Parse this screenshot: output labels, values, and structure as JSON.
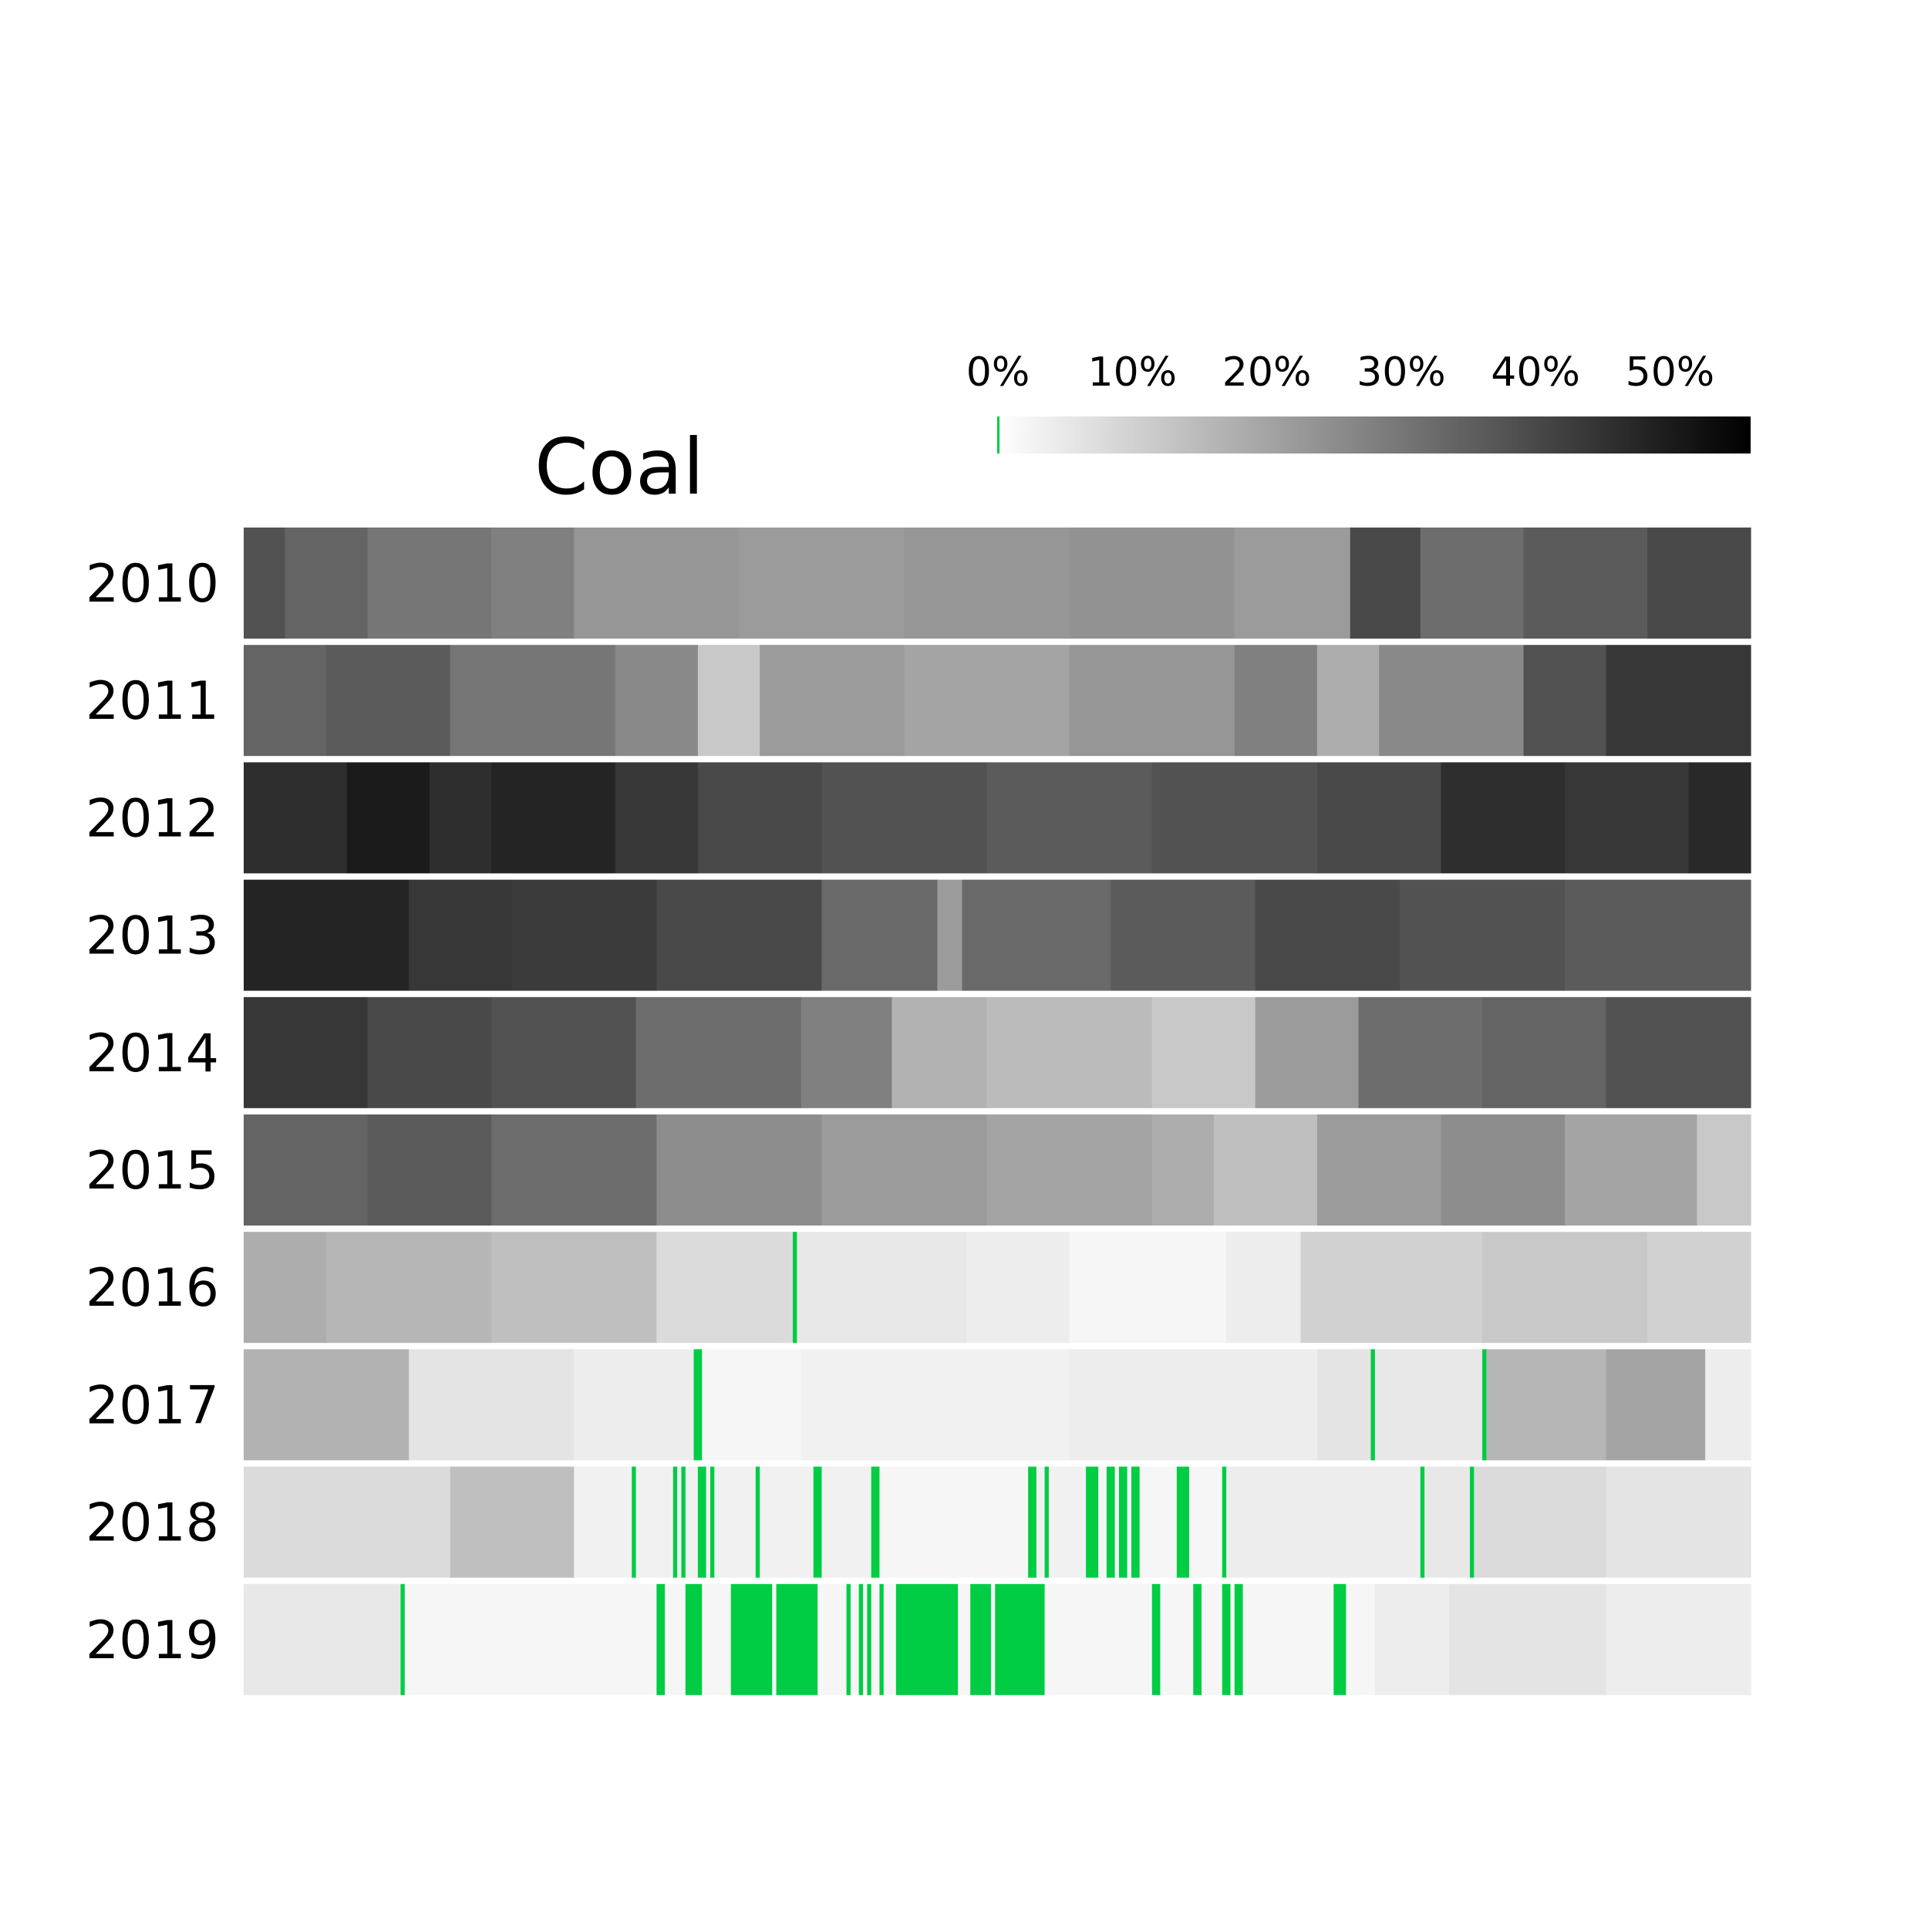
{
  "chart_data": {
    "type": "heatmap",
    "title": "Coal",
    "xlabel": "",
    "ylabel": "",
    "rows": [
      "2010",
      "2011",
      "2012",
      "2013",
      "2014",
      "2015",
      "2016",
      "2017",
      "2018",
      "2019"
    ],
    "days_per_row": 365,
    "value_unit": "%",
    "zero_color": "#00cc44",
    "colormap": [
      "#ffffff",
      "#000000"
    ],
    "colorbar": {
      "min": 0,
      "max": 56,
      "ticks": [
        0,
        10,
        20,
        30,
        40,
        50
      ],
      "tick_labels": [
        "0%",
        "10%",
        "20%",
        "30%",
        "40%",
        "50%"
      ],
      "placement": "top-right"
    },
    "segments": [
      [
        [
          0,
          10,
          38
        ],
        [
          10,
          30,
          34
        ],
        [
          30,
          60,
          30
        ],
        [
          60,
          80,
          28
        ],
        [
          80,
          120,
          23
        ],
        [
          120,
          160,
          22
        ],
        [
          160,
          200,
          23
        ],
        [
          200,
          240,
          24
        ],
        [
          240,
          268,
          22
        ],
        [
          268,
          285,
          40
        ],
        [
          285,
          310,
          32
        ],
        [
          310,
          340,
          36
        ],
        [
          340,
          365,
          40
        ]
      ],
      [
        [
          0,
          20,
          34
        ],
        [
          20,
          50,
          36
        ],
        [
          50,
          90,
          30
        ],
        [
          90,
          110,
          26
        ],
        [
          110,
          125,
          12
        ],
        [
          125,
          160,
          22
        ],
        [
          160,
          200,
          20
        ],
        [
          200,
          240,
          23
        ],
        [
          240,
          260,
          28
        ],
        [
          260,
          275,
          18
        ],
        [
          275,
          310,
          26
        ],
        [
          310,
          330,
          38
        ],
        [
          330,
          365,
          44
        ]
      ],
      [
        [
          0,
          25,
          46
        ],
        [
          25,
          45,
          50
        ],
        [
          45,
          60,
          46
        ],
        [
          60,
          90,
          48
        ],
        [
          90,
          110,
          44
        ],
        [
          110,
          140,
          40
        ],
        [
          140,
          180,
          38
        ],
        [
          180,
          220,
          36
        ],
        [
          220,
          260,
          38
        ],
        [
          260,
          290,
          40
        ],
        [
          290,
          320,
          46
        ],
        [
          320,
          350,
          44
        ],
        [
          350,
          365,
          47
        ]
      ],
      [
        [
          0,
          40,
          48
        ],
        [
          40,
          65,
          44
        ],
        [
          65,
          100,
          43
        ],
        [
          100,
          140,
          40
        ],
        [
          140,
          168,
          33
        ],
        [
          168,
          174,
          22
        ],
        [
          174,
          210,
          33
        ],
        [
          210,
          245,
          36
        ],
        [
          245,
          280,
          40
        ],
        [
          280,
          320,
          38
        ],
        [
          320,
          365,
          36
        ]
      ],
      [
        [
          0,
          30,
          44
        ],
        [
          30,
          60,
          40
        ],
        [
          60,
          95,
          38
        ],
        [
          95,
          135,
          32
        ],
        [
          135,
          157,
          28
        ],
        [
          157,
          180,
          17
        ],
        [
          180,
          220,
          15
        ],
        [
          220,
          245,
          12
        ],
        [
          245,
          270,
          22
        ],
        [
          270,
          300,
          32
        ],
        [
          300,
          330,
          34
        ],
        [
          330,
          365,
          38
        ]
      ],
      [
        [
          0,
          30,
          34
        ],
        [
          30,
          60,
          36
        ],
        [
          60,
          100,
          32
        ],
        [
          100,
          140,
          25
        ],
        [
          140,
          180,
          22
        ],
        [
          180,
          220,
          20
        ],
        [
          220,
          235,
          18
        ],
        [
          235,
          260,
          14
        ],
        [
          260,
          290,
          22
        ],
        [
          290,
          320,
          25
        ],
        [
          320,
          352,
          20
        ],
        [
          352,
          365,
          12
        ]
      ],
      [
        [
          0,
          20,
          18
        ],
        [
          20,
          60,
          16
        ],
        [
          60,
          100,
          14
        ],
        [
          100,
          133,
          8
        ],
        [
          133,
          134,
          0
        ],
        [
          134,
          175,
          5
        ],
        [
          175,
          200,
          4
        ],
        [
          200,
          238,
          2
        ],
        [
          238,
          256,
          4
        ],
        [
          256,
          300,
          10
        ],
        [
          300,
          340,
          12
        ],
        [
          340,
          365,
          10
        ]
      ],
      [
        [
          0,
          40,
          17
        ],
        [
          40,
          80,
          6
        ],
        [
          80,
          109,
          4
        ],
        [
          109,
          111,
          0
        ],
        [
          111,
          135,
          2
        ],
        [
          135,
          200,
          3
        ],
        [
          200,
          260,
          4
        ],
        [
          260,
          273,
          6
        ],
        [
          273,
          274,
          0
        ],
        [
          274,
          300,
          5
        ],
        [
          300,
          301,
          0
        ],
        [
          301,
          330,
          16
        ],
        [
          330,
          354,
          20
        ],
        [
          354,
          365,
          4
        ]
      ],
      [
        [
          0,
          50,
          8
        ],
        [
          50,
          80,
          14
        ],
        [
          80,
          94,
          3
        ],
        [
          94,
          95,
          0
        ],
        [
          95,
          104,
          3
        ],
        [
          104,
          105,
          0
        ],
        [
          105,
          106,
          3
        ],
        [
          106,
          107,
          0
        ],
        [
          107,
          110,
          3
        ],
        [
          110,
          112,
          0
        ],
        [
          112,
          113,
          3
        ],
        [
          113,
          114,
          0
        ],
        [
          114,
          124,
          3
        ],
        [
          124,
          125,
          0
        ],
        [
          125,
          138,
          3
        ],
        [
          138,
          140,
          0
        ],
        [
          140,
          152,
          3
        ],
        [
          152,
          154,
          0
        ],
        [
          154,
          190,
          2
        ],
        [
          190,
          192,
          0
        ],
        [
          192,
          194,
          3
        ],
        [
          194,
          195,
          0
        ],
        [
          195,
          204,
          3
        ],
        [
          204,
          207,
          0
        ],
        [
          207,
          209,
          2
        ],
        [
          209,
          211,
          0
        ],
        [
          211,
          212,
          2
        ],
        [
          212,
          214,
          0
        ],
        [
          214,
          215,
          2
        ],
        [
          215,
          217,
          0
        ],
        [
          217,
          226,
          2
        ],
        [
          226,
          229,
          0
        ],
        [
          229,
          237,
          2
        ],
        [
          237,
          238,
          0
        ],
        [
          238,
          285,
          4
        ],
        [
          285,
          286,
          0
        ],
        [
          286,
          297,
          5
        ],
        [
          297,
          298,
          0
        ],
        [
          298,
          330,
          8
        ],
        [
          330,
          365,
          6
        ]
      ],
      [
        [
          0,
          38,
          5
        ],
        [
          38,
          39,
          0
        ],
        [
          39,
          100,
          2
        ],
        [
          100,
          102,
          0
        ],
        [
          102,
          107,
          2
        ],
        [
          107,
          111,
          0
        ],
        [
          111,
          118,
          2
        ],
        [
          118,
          128,
          0
        ],
        [
          128,
          129,
          2
        ],
        [
          129,
          139,
          0
        ],
        [
          139,
          146,
          2
        ],
        [
          146,
          147,
          0
        ],
        [
          147,
          149,
          2
        ],
        [
          149,
          150,
          0
        ],
        [
          150,
          151,
          2
        ],
        [
          151,
          152,
          0
        ],
        [
          152,
          154,
          2
        ],
        [
          154,
          155,
          0
        ],
        [
          155,
          158,
          2
        ],
        [
          158,
          173,
          0
        ],
        [
          173,
          176,
          2
        ],
        [
          176,
          181,
          0
        ],
        [
          181,
          182,
          2
        ],
        [
          182,
          194,
          0
        ],
        [
          194,
          220,
          2
        ],
        [
          220,
          222,
          0
        ],
        [
          222,
          230,
          2
        ],
        [
          230,
          232,
          0
        ],
        [
          232,
          237,
          2
        ],
        [
          237,
          239,
          0
        ],
        [
          239,
          240,
          2
        ],
        [
          240,
          242,
          0
        ],
        [
          242,
          264,
          2
        ],
        [
          264,
          267,
          0
        ],
        [
          267,
          274,
          2
        ],
        [
          274,
          292,
          4
        ],
        [
          292,
          330,
          6
        ],
        [
          330,
          365,
          4
        ]
      ]
    ]
  }
}
